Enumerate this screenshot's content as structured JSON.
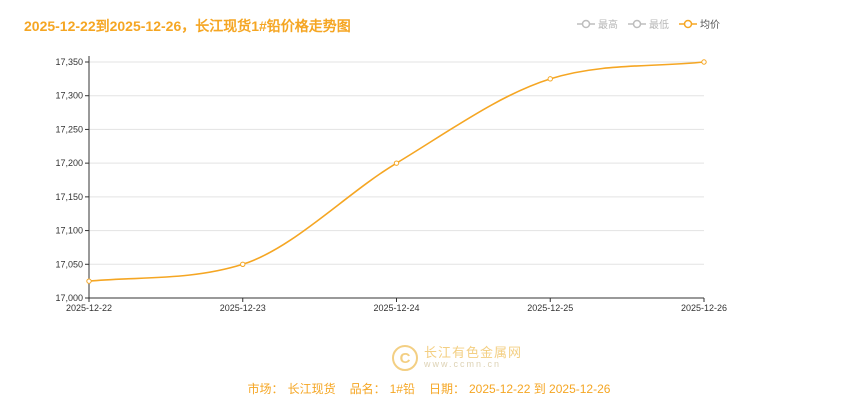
{
  "title": "2025-12-22到2025-12-26，长江现货1#铅价格走势图",
  "legend": [
    {
      "label": "最高",
      "color": "#bdbdbd",
      "active": false
    },
    {
      "label": "最低",
      "color": "#bdbdbd",
      "active": false
    },
    {
      "label": "均价",
      "color": "#f5a623",
      "active": true
    }
  ],
  "watermark": {
    "logo_glyph": "C",
    "name": "长江有色金属网",
    "url": "www.ccmn.cn"
  },
  "footer": {
    "market_label": "市场：",
    "market": "长江现货",
    "product_label": "品名：",
    "product": "1#铅",
    "date_label": "日期：",
    "date_range": "2025-12-22 到 2025-12-26"
  },
  "chart_data": {
    "type": "line",
    "categories": [
      "2025-12-22",
      "2025-12-23",
      "2025-12-24",
      "2025-12-25",
      "2025-12-26"
    ],
    "series": [
      {
        "name": "均价",
        "values": [
          17025,
          17050,
          17200,
          17325,
          17350
        ],
        "color": "#f5a623"
      }
    ],
    "ylim": [
      17000,
      17350
    ],
    "yticks": [
      17000,
      17050,
      17100,
      17150,
      17200,
      17250,
      17300,
      17350
    ],
    "ytick_labels": [
      "17,000",
      "17,050",
      "17,100",
      "17,150",
      "17,200",
      "17,250",
      "17,300",
      "17,350"
    ],
    "grid": true
  }
}
